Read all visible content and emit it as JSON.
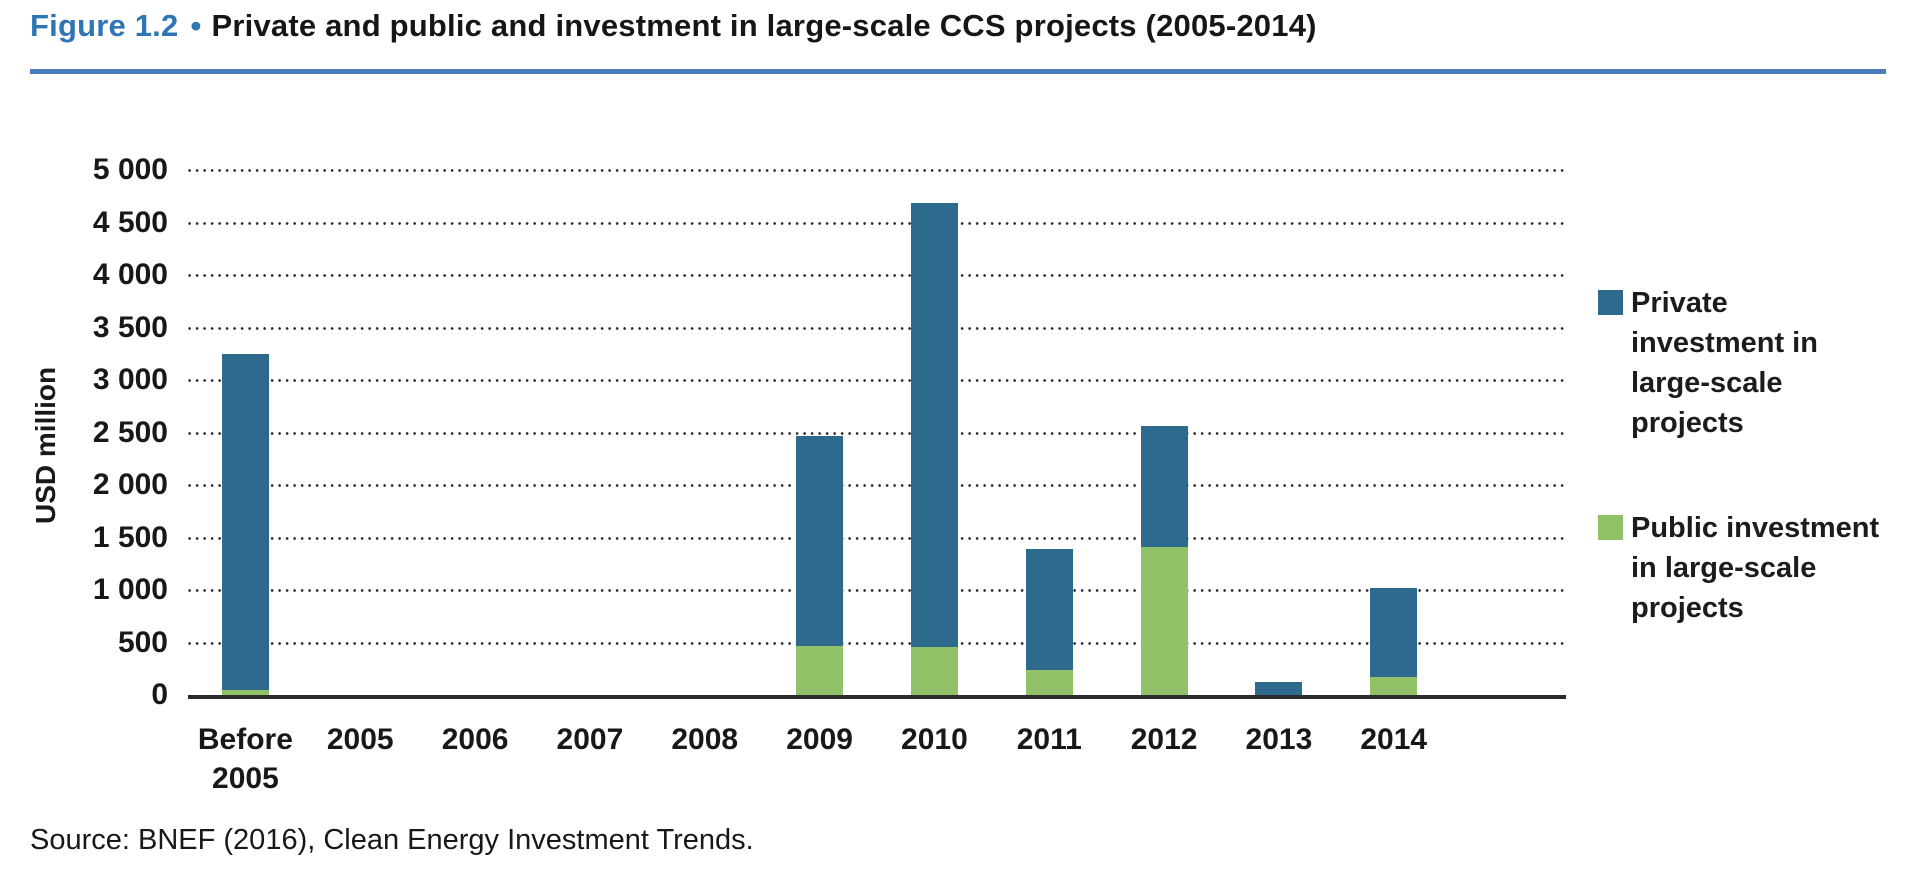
{
  "figure": {
    "label": "Figure 1.2",
    "bullet": "•",
    "title": "Private and public and investment in large-scale CCS projects (2005-2014)"
  },
  "source_note": "Source: BNEF (2016), Clean Energy Investment Trends.",
  "y_axis": {
    "title": "USD million",
    "tick_labels": [
      "5 000",
      "4 500",
      "4 000",
      "3 500",
      "3 000",
      "2 500",
      "2 000",
      "1 500",
      "1 000",
      "500",
      "0"
    ]
  },
  "legend": [
    {
      "name": "Private investment in large-scale projects",
      "lines": [
        "Private",
        "investment in",
        "large-scale",
        "projects"
      ],
      "color": "#2E6A8E"
    },
    {
      "name": "Public investment in large-scale projects",
      "lines": [
        "Public investment",
        "in large-scale",
        "projects"
      ],
      "color": "#92C268"
    }
  ],
  "chart_data": {
    "type": "bar",
    "stacked": true,
    "title": "Private and public and investment in large-scale CCS projects (2005-2014)",
    "categories": [
      "Before 2005",
      "2005",
      "2006",
      "2007",
      "2008",
      "2009",
      "2010",
      "2011",
      "2012",
      "2013",
      "2014"
    ],
    "series": [
      {
        "name": "Private investment in large-scale projects",
        "color": "#2E6A8E",
        "values": [
          3200,
          0,
          0,
          0,
          0,
          2000,
          4230,
          1150,
          1150,
          120,
          850
        ]
      },
      {
        "name": "Public investment in large-scale projects",
        "color": "#92C268",
        "values": [
          50,
          0,
          0,
          0,
          0,
          470,
          460,
          240,
          1410,
          0,
          170
        ]
      }
    ],
    "xlabel": "",
    "ylabel": "USD million",
    "ylim": [
      0,
      5000
    ],
    "ytick_step": 500,
    "grid": "dotted-horizontal",
    "legend_position": "right"
  },
  "colors": {
    "figure_label_blue": "#2E75B6",
    "title_rule_blue": "#4A7EBB",
    "private_bar": "#2E6A8E",
    "public_bar": "#92C268",
    "axis_line": "#2b2b2b",
    "grid_dots": "#2f2f2f",
    "text": "#181818",
    "background": "#ffffff"
  }
}
